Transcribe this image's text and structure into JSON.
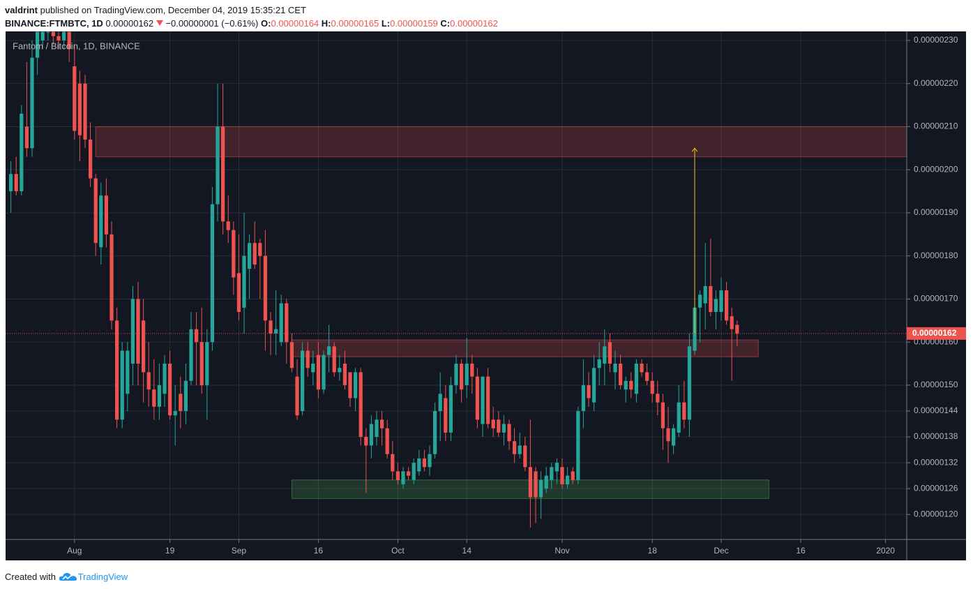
{
  "header": {
    "author": "valdrint",
    "published": "published on TradingView.com, December 04, 2019 15:35:21 CET",
    "symbol": "BINANCE:FTMBTC, 1D",
    "price": "0.00000162",
    "change": "−0.00000001 (−0.61%)",
    "ohlc": [
      {
        "label": "O:",
        "value": "0.00000164"
      },
      {
        "label": "H:",
        "value": "0.00000165"
      },
      {
        "label": "L:",
        "value": "0.00000159"
      },
      {
        "label": "C:",
        "value": "0.00000162"
      }
    ]
  },
  "footer": {
    "text": "Created with",
    "brand": "TradingView"
  },
  "chart_data": {
    "type": "candlestick",
    "title": "Fantom / Bitcoin, 1D, BINANCE",
    "up_color": "#26a69a",
    "down_color": "#ef5350",
    "grid": true,
    "xlim": [
      "2019-07-19",
      "2020-01-05"
    ],
    "xticks": [
      {
        "value": "2019-08-01",
        "label": "Aug"
      },
      {
        "value": "2019-08-19",
        "label": "19"
      },
      {
        "value": "2019-09-01",
        "label": "Sep"
      },
      {
        "value": "2019-09-16",
        "label": "16"
      },
      {
        "value": "2019-10-01",
        "label": "Oct"
      },
      {
        "value": "2019-10-14",
        "label": "14"
      },
      {
        "value": "2019-11-01",
        "label": "Nov"
      },
      {
        "value": "2019-11-18",
        "label": "18"
      },
      {
        "value": "2019-12-01",
        "label": "Dec"
      },
      {
        "value": "2019-12-16",
        "label": "16"
      },
      {
        "value": "2020-01-01",
        "label": "2020"
      }
    ],
    "ylim": [
      1.142e-06,
      2.321e-06
    ],
    "yticks": [
      {
        "value": 2.3e-06,
        "label": "0.00000230"
      },
      {
        "value": 2.2e-06,
        "label": "0.00000220"
      },
      {
        "value": 2.1e-06,
        "label": "0.00000210"
      },
      {
        "value": 2e-06,
        "label": "0.00000200"
      },
      {
        "value": 1.9e-06,
        "label": "0.00000190"
      },
      {
        "value": 1.8e-06,
        "label": "0.00000180"
      },
      {
        "value": 1.7e-06,
        "label": "0.00000170"
      },
      {
        "value": 1.6e-06,
        "label": "0.00000160"
      },
      {
        "value": 1.5e-06,
        "label": "0.00000150"
      },
      {
        "value": 1.44e-06,
        "label": "0.00000144"
      },
      {
        "value": 1.38e-06,
        "label": "0.00000138"
      },
      {
        "value": 1.32e-06,
        "label": "0.00000132"
      },
      {
        "value": 1.26e-06,
        "label": "0.00000126"
      },
      {
        "value": 1.2e-06,
        "label": "0.00000120"
      }
    ],
    "last_price_label": "0.00000162",
    "last_price_color": "#ef5350",
    "zones": [
      {
        "x0": "2019-08-05",
        "x1": "2020-01-05",
        "low": 2.03e-06,
        "high": 2.1e-06,
        "color": "#ef5350"
      },
      {
        "x0": "2019-09-11",
        "x1": "2019-12-08",
        "low": 1.566e-06,
        "high": 1.605e-06,
        "color": "#ef5350"
      },
      {
        "x0": "2019-09-11",
        "x1": "2019-12-10",
        "low": 1.237e-06,
        "high": 1.28e-06,
        "color": "#4caf50"
      }
    ],
    "arrow": {
      "x": "2019-11-26",
      "from": 1.62e-06,
      "to": 2.05e-06,
      "color": "#f0c419"
    },
    "x": [
      "2019-07-20",
      "2019-07-21",
      "2019-07-22",
      "2019-07-23",
      "2019-07-24",
      "2019-07-25",
      "2019-07-26",
      "2019-07-27",
      "2019-07-28",
      "2019-07-29",
      "2019-07-30",
      "2019-07-31",
      "2019-08-01",
      "2019-08-02",
      "2019-08-03",
      "2019-08-04",
      "2019-08-05",
      "2019-08-06",
      "2019-08-07",
      "2019-08-08",
      "2019-08-09",
      "2019-08-10",
      "2019-08-11",
      "2019-08-12",
      "2019-08-13",
      "2019-08-14",
      "2019-08-15",
      "2019-08-16",
      "2019-08-17",
      "2019-08-18",
      "2019-08-19",
      "2019-08-20",
      "2019-08-21",
      "2019-08-22",
      "2019-08-23",
      "2019-08-24",
      "2019-08-25",
      "2019-08-26",
      "2019-08-27",
      "2019-08-28",
      "2019-08-29",
      "2019-08-30",
      "2019-08-31",
      "2019-09-01",
      "2019-09-02",
      "2019-09-03",
      "2019-09-04",
      "2019-09-05",
      "2019-09-06",
      "2019-09-07",
      "2019-09-08",
      "2019-09-09",
      "2019-09-10",
      "2019-09-11",
      "2019-09-12",
      "2019-09-13",
      "2019-09-14",
      "2019-09-15",
      "2019-09-16",
      "2019-09-17",
      "2019-09-18",
      "2019-09-19",
      "2019-09-20",
      "2019-09-21",
      "2019-09-22",
      "2019-09-23",
      "2019-09-24",
      "2019-09-25",
      "2019-09-26",
      "2019-09-27",
      "2019-09-28",
      "2019-09-29",
      "2019-09-30",
      "2019-10-01",
      "2019-10-02",
      "2019-10-03",
      "2019-10-04",
      "2019-10-05",
      "2019-10-06",
      "2019-10-07",
      "2019-10-08",
      "2019-10-09",
      "2019-10-10",
      "2019-10-11",
      "2019-10-12",
      "2019-10-13",
      "2019-10-14",
      "2019-10-15",
      "2019-10-16",
      "2019-10-17",
      "2019-10-18",
      "2019-10-19",
      "2019-10-20",
      "2019-10-21",
      "2019-10-22",
      "2019-10-23",
      "2019-10-24",
      "2019-10-25",
      "2019-10-26",
      "2019-10-27",
      "2019-10-28",
      "2019-10-29",
      "2019-10-30",
      "2019-10-31",
      "2019-11-01",
      "2019-11-02",
      "2019-11-03",
      "2019-11-04",
      "2019-11-05",
      "2019-11-06",
      "2019-11-07",
      "2019-11-08",
      "2019-11-09",
      "2019-11-10",
      "2019-11-11",
      "2019-11-12",
      "2019-11-13",
      "2019-11-14",
      "2019-11-15",
      "2019-11-16",
      "2019-11-17",
      "2019-11-18",
      "2019-11-19",
      "2019-11-20",
      "2019-11-21",
      "2019-11-22",
      "2019-11-23",
      "2019-11-24",
      "2019-11-25",
      "2019-11-26",
      "2019-11-27",
      "2019-11-28",
      "2019-11-29",
      "2019-11-30",
      "2019-12-01",
      "2019-12-02",
      "2019-12-03",
      "2019-12-04"
    ],
    "open": [
      1.95e-06,
      1.99e-06,
      1.95e-06,
      2.1e-06,
      2.05e-06,
      2.26e-06,
      2.3e-06,
      2.32e-06,
      2.32e-06,
      2.31e-06,
      2.3e-06,
      2.32e-06,
      2.24e-06,
      2.2e-06,
      2.2e-06,
      2.07e-06,
      1.98e-06,
      1.82e-06,
      1.94e-06,
      1.85e-06,
      1.65e-06,
      1.42e-06,
      1.48e-06,
      1.55e-06,
      1.7e-06,
      1.65e-06,
      1.53e-06,
      1.49e-06,
      1.45e-06,
      1.48e-06,
      1.55e-06,
      1.43e-06,
      1.48e-06,
      1.44e-06,
      1.51e-06,
      1.63e-06,
      1.6e-06,
      1.5e-06,
      1.6e-06,
      1.92e-06,
      2.1e-06,
      1.88e-06,
      1.86e-06,
      1.76e-06,
      1.68e-06,
      1.77e-06,
      1.83e-06,
      1.83e-06,
      1.8e-06,
      1.65e-06,
      1.62e-06,
      1.6e-06,
      1.69e-06,
      1.6e-06,
      1.52e-06,
      1.44e-06,
      1.58e-06,
      1.53e-06,
      1.57e-06,
      1.49e-06,
      1.57e-06,
      1.59e-06,
      1.53e-06,
      1.55e-06,
      1.53e-06,
      1.47e-06,
      1.53e-06,
      1.38e-06,
      1.36e-06,
      1.38e-06,
      1.42e-06,
      1.4e-06,
      1.34e-06,
      1.3e-06,
      1.27e-06,
      1.3e-06,
      1.28e-06,
      1.3e-06,
      1.33e-06,
      1.31e-06,
      1.34e-06,
      1.44e-06,
      1.47e-06,
      1.39e-06,
      1.5e-06,
      1.55e-06,
      1.5e-06,
      1.55e-06,
      1.52e-06,
      1.41e-06,
      1.52e-06,
      1.42e-06,
      1.42e-06,
      1.39e-06,
      1.41e-06,
      1.37e-06,
      1.34e-06,
      1.36e-06,
      1.31e-06,
      1.3e-06,
      1.24e-06,
      1.26e-06,
      1.28e-06,
      1.3e-06,
      1.31e-06,
      1.27e-06,
      1.3e-06,
      1.28e-06,
      1.44e-06,
      1.5e-06,
      1.46e-06,
      1.54e-06,
      1.55e-06,
      1.6e-06,
      1.53e-06,
      1.55e-06,
      1.49e-06,
      1.51e-06,
      1.48e-06,
      1.55e-06,
      1.53e-06,
      1.51e-06,
      1.48e-06,
      1.46e-06,
      1.4e-06,
      1.36e-06,
      1.39e-06,
      1.46e-06,
      1.42e-06,
      1.58e-06,
      1.68e-06,
      1.69e-06,
      1.73e-06,
      1.67e-06,
      1.67e-06,
      1.72e-06,
      1.66e-06,
      1.64e-06
    ],
    "high": [
      2.02e-06,
      2.03e-06,
      2.15e-06,
      2.25e-06,
      2.3e-06,
      2.33e-06,
      2.33e-06,
      2.33e-06,
      2.33e-06,
      2.33e-06,
      2.33e-06,
      2.33e-06,
      2.29e-06,
      2.23e-06,
      2.22e-06,
      2.11e-06,
      1.99e-06,
      1.97e-06,
      1.98e-06,
      1.88e-06,
      1.68e-06,
      1.6e-06,
      1.6e-06,
      1.73e-06,
      1.74e-06,
      1.7e-06,
      1.6e-06,
      1.56e-06,
      1.55e-06,
      1.57e-06,
      1.58e-06,
      1.5e-06,
      1.52e-06,
      1.55e-06,
      1.67e-06,
      1.67e-06,
      1.68e-06,
      1.63e-06,
      1.96e-06,
      2.2e-06,
      2.2e-06,
      1.94e-06,
      1.88e-06,
      1.85e-06,
      1.9e-06,
      1.85e-06,
      1.88e-06,
      1.84e-06,
      1.86e-06,
      1.67e-06,
      1.72e-06,
      1.71e-06,
      1.7e-06,
      1.62e-06,
      1.56e-06,
      1.6e-06,
      1.6e-06,
      1.58e-06,
      1.6e-06,
      1.58e-06,
      1.64e-06,
      1.6e-06,
      1.57e-06,
      1.58e-06,
      1.53e-06,
      1.54e-06,
      1.54e-06,
      1.4e-06,
      1.43e-06,
      1.44e-06,
      1.44e-06,
      1.42e-06,
      1.37e-06,
      1.32e-06,
      1.31e-06,
      1.31e-06,
      1.33e-06,
      1.35e-06,
      1.35e-06,
      1.36e-06,
      1.46e-06,
      1.53e-06,
      1.5e-06,
      1.52e-06,
      1.57e-06,
      1.56e-06,
      1.61e-06,
      1.57e-06,
      1.54e-06,
      1.52e-06,
      1.54e-06,
      1.45e-06,
      1.44e-06,
      1.43e-06,
      1.42e-06,
      1.4e-06,
      1.39e-06,
      1.38e-06,
      1.42e-06,
      1.31e-06,
      1.3e-06,
      1.31e-06,
      1.32e-06,
      1.33e-06,
      1.33e-06,
      1.31e-06,
      1.31e-06,
      1.45e-06,
      1.56e-06,
      1.53e-06,
      1.57e-06,
      1.6e-06,
      1.63e-06,
      1.62e-06,
      1.58e-06,
      1.57e-06,
      1.52e-06,
      1.53e-06,
      1.56e-06,
      1.56e-06,
      1.55e-06,
      1.53e-06,
      1.51e-06,
      1.48e-06,
      1.45e-06,
      1.41e-06,
      1.5e-06,
      1.51e-06,
      1.62e-06,
      1.81e-06,
      1.72e-06,
      1.83e-06,
      1.84e-06,
      1.72e-06,
      1.75e-06,
      1.74e-06,
      1.68e-06,
      1.65e-06
    ],
    "low": [
      1.9e-06,
      1.94e-06,
      1.94e-06,
      2.03e-06,
      2.03e-06,
      2.22e-06,
      2.28e-06,
      2.3e-06,
      2.29e-06,
      2.28e-06,
      2.28e-06,
      2.25e-06,
      2.07e-06,
      2.02e-06,
      2.05e-06,
      1.96e-06,
      1.8e-06,
      1.78e-06,
      1.82e-06,
      1.63e-06,
      1.4e-06,
      1.4e-06,
      1.44e-06,
      1.5e-06,
      1.5e-06,
      1.46e-06,
      1.45e-06,
      1.42e-06,
      1.42e-06,
      1.45e-06,
      1.42e-06,
      1.36e-06,
      1.4e-06,
      1.41e-06,
      1.5e-06,
      1.5e-06,
      1.48e-06,
      1.42e-06,
      1.58e-06,
      1.88e-06,
      1.85e-06,
      1.83e-06,
      1.71e-06,
      1.65e-06,
      1.62e-06,
      1.7e-06,
      1.77e-06,
      1.7e-06,
      1.58e-06,
      1.57e-06,
      1.57e-06,
      1.59e-06,
      1.55e-06,
      1.53e-06,
      1.42e-06,
      1.43e-06,
      1.52e-06,
      1.5e-06,
      1.47e-06,
      1.48e-06,
      1.53e-06,
      1.52e-06,
      1.51e-06,
      1.49e-06,
      1.45e-06,
      1.44e-06,
      1.36e-06,
      1.25e-06,
      1.33e-06,
      1.36e-06,
      1.36e-06,
      1.33e-06,
      1.28e-06,
      1.27e-06,
      1.26e-06,
      1.28e-06,
      1.27e-06,
      1.29e-06,
      1.3e-06,
      1.29e-06,
      1.33e-06,
      1.37e-06,
      1.37e-06,
      1.37e-06,
      1.48e-06,
      1.46e-06,
      1.47e-06,
      1.48e-06,
      1.4e-06,
      1.38e-06,
      1.4e-06,
      1.38e-06,
      1.38e-06,
      1.36e-06,
      1.35e-06,
      1.32e-06,
      1.33e-06,
      1.3e-06,
      1.17e-06,
      1.18e-06,
      1.19e-06,
      1.25e-06,
      1.26e-06,
      1.27e-06,
      1.26e-06,
      1.26e-06,
      1.27e-06,
      1.27e-06,
      1.4e-06,
      1.45e-06,
      1.44e-06,
      1.5e-06,
      1.5e-06,
      1.53e-06,
      1.49e-06,
      1.49e-06,
      1.46e-06,
      1.47e-06,
      1.46e-06,
      1.52e-06,
      1.5e-06,
      1.46e-06,
      1.43e-06,
      1.35e-06,
      1.32e-06,
      1.34e-06,
      1.38e-06,
      1.4e-06,
      1.38e-06,
      1.57e-06,
      1.6e-06,
      1.63e-06,
      1.66e-06,
      1.63e-06,
      1.65e-06,
      1.64e-06,
      1.51e-06,
      1.59e-06
    ],
    "close": [
      1.99e-06,
      1.95e-06,
      2.13e-06,
      2.05e-06,
      2.26e-06,
      2.32e-06,
      2.32e-06,
      2.32e-06,
      2.31e-06,
      2.3e-06,
      2.32e-06,
      2.28e-06,
      2.09e-06,
      2.08e-06,
      2.07e-06,
      1.98e-06,
      1.83e-06,
      1.94e-06,
      1.85e-06,
      1.65e-06,
      1.42e-06,
      1.58e-06,
      1.58e-06,
      1.7e-06,
      1.55e-06,
      1.53e-06,
      1.49e-06,
      1.45e-06,
      1.5e-06,
      1.55e-06,
      1.43e-06,
      1.44e-06,
      1.44e-06,
      1.51e-06,
      1.63e-06,
      1.6e-06,
      1.5e-06,
      1.6e-06,
      1.92e-06,
      2.1e-06,
      1.88e-06,
      1.86e-06,
      1.75e-06,
      1.67e-06,
      1.8e-06,
      1.83e-06,
      1.78e-06,
      1.8e-06,
      1.65e-06,
      1.62e-06,
      1.63e-06,
      1.69e-06,
      1.6e-06,
      1.54e-06,
      1.43e-06,
      1.58e-06,
      1.54e-06,
      1.55e-06,
      1.49e-06,
      1.57e-06,
      1.59e-06,
      1.53e-06,
      1.54e-06,
      1.5e-06,
      1.47e-06,
      1.53e-06,
      1.38e-06,
      1.36e-06,
      1.41e-06,
      1.42e-06,
      1.4e-06,
      1.34e-06,
      1.3e-06,
      1.28e-06,
      1.3e-06,
      1.29e-06,
      1.32e-06,
      1.33e-06,
      1.31e-06,
      1.34e-06,
      1.44e-06,
      1.48e-06,
      1.39e-06,
      1.5e-06,
      1.55e-06,
      1.49e-06,
      1.55e-06,
      1.52e-06,
      1.42e-06,
      1.52e-06,
      1.41e-06,
      1.4e-06,
      1.39e-06,
      1.41e-06,
      1.37e-06,
      1.34e-06,
      1.36e-06,
      1.31e-06,
      1.24e-06,
      1.24e-06,
      1.28e-06,
      1.29e-06,
      1.31e-06,
      1.32e-06,
      1.27e-06,
      1.29e-06,
      1.28e-06,
      1.44e-06,
      1.5e-06,
      1.47e-06,
      1.54e-06,
      1.56e-06,
      1.59e-06,
      1.55e-06,
      1.55e-06,
      1.5e-06,
      1.51e-06,
      1.49e-06,
      1.55e-06,
      1.53e-06,
      1.51e-06,
      1.48e-06,
      1.46e-06,
      1.4e-06,
      1.37e-06,
      1.4e-06,
      1.46e-06,
      1.42e-06,
      1.59e-06,
      1.68e-06,
      1.71e-06,
      1.73e-06,
      1.67e-06,
      1.7e-06,
      1.72e-06,
      1.65e-06,
      1.63e-06,
      1.62e-06
    ]
  }
}
